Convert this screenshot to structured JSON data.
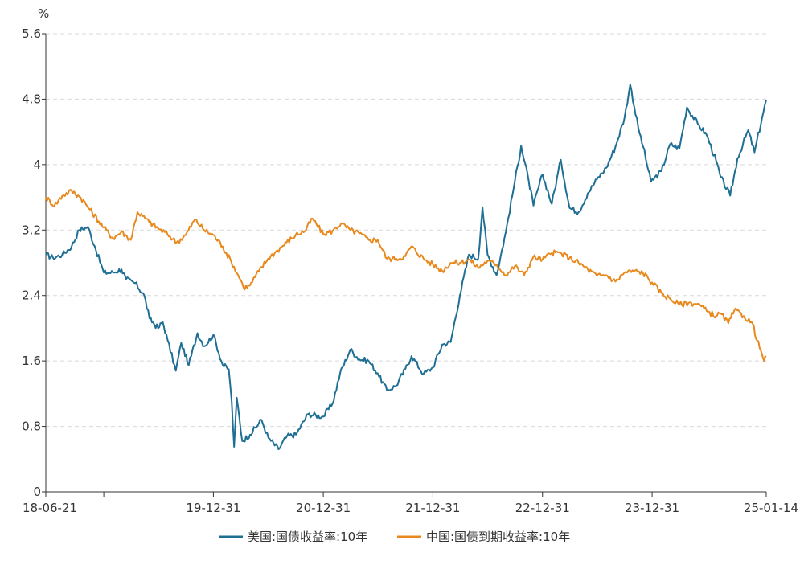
{
  "chart_data": {
    "type": "line",
    "title": "",
    "xlabel": "",
    "ylabel": "%",
    "ylim": [
      0,
      5.6
    ],
    "y_ticks": [
      "0",
      "0.8",
      "1.6",
      "2.4",
      "3.2",
      "4",
      "4.8",
      "5.6"
    ],
    "x_ticks": [
      "18-06-21",
      "19-12-31",
      "20-12-31",
      "21-12-31",
      "22-12-31",
      "23-12-31",
      "25-01-14"
    ],
    "grid": "horizontal-dashed",
    "legend_position": "bottom-center",
    "series": [
      {
        "name": "美国:国债收益率:10年",
        "color": "#1f6f95",
        "points": [
          [
            "2018-06-21",
            2.9
          ],
          [
            "2018-07-15",
            2.86
          ],
          [
            "2018-08-15",
            2.9
          ],
          [
            "2018-09-15",
            3.0
          ],
          [
            "2018-10-10",
            3.2
          ],
          [
            "2018-11-08",
            3.24
          ],
          [
            "2018-12-01",
            3.0
          ],
          [
            "2018-12-31",
            2.68
          ],
          [
            "2019-01-31",
            2.68
          ],
          [
            "2019-02-28",
            2.72
          ],
          [
            "2019-03-15",
            2.6
          ],
          [
            "2019-04-15",
            2.55
          ],
          [
            "2019-05-15",
            2.4
          ],
          [
            "2019-06-01",
            2.12
          ],
          [
            "2019-06-30",
            2.0
          ],
          [
            "2019-07-15",
            2.08
          ],
          [
            "2019-08-01",
            1.85
          ],
          [
            "2019-08-28",
            1.48
          ],
          [
            "2019-09-15",
            1.82
          ],
          [
            "2019-10-10",
            1.55
          ],
          [
            "2019-11-08",
            1.94
          ],
          [
            "2019-12-01",
            1.78
          ],
          [
            "2019-12-31",
            1.92
          ],
          [
            "2020-01-31",
            1.55
          ],
          [
            "2020-02-20",
            1.5
          ],
          [
            "2020-03-01",
            1.1
          ],
          [
            "2020-03-09",
            0.55
          ],
          [
            "2020-03-18",
            1.15
          ],
          [
            "2020-04-05",
            0.62
          ],
          [
            "2020-05-01",
            0.7
          ],
          [
            "2020-06-08",
            0.88
          ],
          [
            "2020-07-01",
            0.66
          ],
          [
            "2020-08-04",
            0.52
          ],
          [
            "2020-09-01",
            0.68
          ],
          [
            "2020-10-01",
            0.7
          ],
          [
            "2020-11-10",
            0.95
          ],
          [
            "2020-12-31",
            0.92
          ],
          [
            "2021-01-31",
            1.08
          ],
          [
            "2021-02-25",
            1.45
          ],
          [
            "2021-03-31",
            1.74
          ],
          [
            "2021-04-30",
            1.62
          ],
          [
            "2021-05-31",
            1.6
          ],
          [
            "2021-06-30",
            1.45
          ],
          [
            "2021-07-31",
            1.24
          ],
          [
            "2021-08-31",
            1.3
          ],
          [
            "2021-09-30",
            1.5
          ],
          [
            "2021-10-21",
            1.66
          ],
          [
            "2021-11-30",
            1.44
          ],
          [
            "2021-12-31",
            1.52
          ],
          [
            "2022-01-31",
            1.8
          ],
          [
            "2022-02-28",
            1.83
          ],
          [
            "2022-03-31",
            2.4
          ],
          [
            "2022-04-30",
            2.9
          ],
          [
            "2022-05-31",
            2.85
          ],
          [
            "2022-06-14",
            3.48
          ],
          [
            "2022-07-01",
            2.9
          ],
          [
            "2022-07-31",
            2.65
          ],
          [
            "2022-08-31",
            3.18
          ],
          [
            "2022-09-30",
            3.8
          ],
          [
            "2022-10-21",
            4.23
          ],
          [
            "2022-11-15",
            3.8
          ],
          [
            "2022-12-01",
            3.5
          ],
          [
            "2022-12-31",
            3.88
          ],
          [
            "2023-01-31",
            3.52
          ],
          [
            "2023-03-02",
            4.06
          ],
          [
            "2023-03-31",
            3.47
          ],
          [
            "2023-04-30",
            3.42
          ],
          [
            "2023-05-31",
            3.65
          ],
          [
            "2023-06-30",
            3.82
          ],
          [
            "2023-07-31",
            3.96
          ],
          [
            "2023-08-31",
            4.22
          ],
          [
            "2023-09-30",
            4.57
          ],
          [
            "2023-10-19",
            4.98
          ],
          [
            "2023-11-15",
            4.45
          ],
          [
            "2023-12-01",
            4.22
          ],
          [
            "2023-12-27",
            3.79
          ],
          [
            "2024-01-31",
            3.92
          ],
          [
            "2024-02-29",
            4.25
          ],
          [
            "2024-03-31",
            4.2
          ],
          [
            "2024-04-25",
            4.7
          ],
          [
            "2024-05-31",
            4.5
          ],
          [
            "2024-06-30",
            4.36
          ],
          [
            "2024-07-31",
            4.05
          ],
          [
            "2024-08-15",
            3.85
          ],
          [
            "2024-09-16",
            3.62
          ],
          [
            "2024-10-10",
            4.07
          ],
          [
            "2024-11-15",
            4.42
          ],
          [
            "2024-12-06",
            4.15
          ],
          [
            "2024-12-31",
            4.57
          ],
          [
            "2025-01-14",
            4.79
          ]
        ]
      },
      {
        "name": "中国:国债到期收益率:10年",
        "color": "#e8891e",
        "points": [
          [
            "2018-06-21",
            3.6
          ],
          [
            "2018-07-20",
            3.5
          ],
          [
            "2018-08-15",
            3.62
          ],
          [
            "2018-09-15",
            3.68
          ],
          [
            "2018-10-15",
            3.6
          ],
          [
            "2018-11-15",
            3.45
          ],
          [
            "2018-12-31",
            3.23
          ],
          [
            "2019-01-31",
            3.1
          ],
          [
            "2019-02-28",
            3.18
          ],
          [
            "2019-03-31",
            3.08
          ],
          [
            "2019-04-22",
            3.42
          ],
          [
            "2019-05-31",
            3.3
          ],
          [
            "2019-06-30",
            3.22
          ],
          [
            "2019-07-31",
            3.15
          ],
          [
            "2019-08-31",
            3.05
          ],
          [
            "2019-09-30",
            3.14
          ],
          [
            "2019-10-31",
            3.33
          ],
          [
            "2019-11-30",
            3.2
          ],
          [
            "2019-12-31",
            3.14
          ],
          [
            "2020-01-31",
            3.0
          ],
          [
            "2020-02-29",
            2.81
          ],
          [
            "2020-03-31",
            2.59
          ],
          [
            "2020-04-09",
            2.5
          ],
          [
            "2020-04-30",
            2.52
          ],
          [
            "2020-05-31",
            2.7
          ],
          [
            "2020-06-30",
            2.85
          ],
          [
            "2020-07-31",
            2.95
          ],
          [
            "2020-08-31",
            3.05
          ],
          [
            "2020-09-30",
            3.14
          ],
          [
            "2020-10-31",
            3.19
          ],
          [
            "2020-11-25",
            3.34
          ],
          [
            "2020-12-31",
            3.15
          ],
          [
            "2021-01-31",
            3.19
          ],
          [
            "2021-02-28",
            3.28
          ],
          [
            "2021-03-31",
            3.2
          ],
          [
            "2021-04-30",
            3.16
          ],
          [
            "2021-05-31",
            3.08
          ],
          [
            "2021-06-30",
            3.08
          ],
          [
            "2021-07-31",
            2.85
          ],
          [
            "2021-08-31",
            2.85
          ],
          [
            "2021-09-30",
            2.88
          ],
          [
            "2021-10-20",
            3.0
          ],
          [
            "2021-11-30",
            2.85
          ],
          [
            "2021-12-31",
            2.78
          ],
          [
            "2022-01-31",
            2.7
          ],
          [
            "2022-02-28",
            2.8
          ],
          [
            "2022-03-31",
            2.8
          ],
          [
            "2022-04-30",
            2.84
          ],
          [
            "2022-05-31",
            2.74
          ],
          [
            "2022-06-30",
            2.82
          ],
          [
            "2022-07-31",
            2.78
          ],
          [
            "2022-08-31",
            2.65
          ],
          [
            "2022-09-30",
            2.76
          ],
          [
            "2022-10-31",
            2.65
          ],
          [
            "2022-11-30",
            2.87
          ],
          [
            "2022-12-31",
            2.84
          ],
          [
            "2023-01-31",
            2.92
          ],
          [
            "2023-02-28",
            2.92
          ],
          [
            "2023-03-31",
            2.86
          ],
          [
            "2023-04-30",
            2.8
          ],
          [
            "2023-05-31",
            2.72
          ],
          [
            "2023-06-30",
            2.64
          ],
          [
            "2023-07-31",
            2.65
          ],
          [
            "2023-08-31",
            2.57
          ],
          [
            "2023-09-30",
            2.68
          ],
          [
            "2023-10-31",
            2.7
          ],
          [
            "2023-11-30",
            2.68
          ],
          [
            "2023-12-31",
            2.56
          ],
          [
            "2024-01-31",
            2.43
          ],
          [
            "2024-02-29",
            2.36
          ],
          [
            "2024-03-31",
            2.29
          ],
          [
            "2024-04-30",
            2.31
          ],
          [
            "2024-05-31",
            2.3
          ],
          [
            "2024-06-30",
            2.21
          ],
          [
            "2024-07-31",
            2.15
          ],
          [
            "2024-08-15",
            2.18
          ],
          [
            "2024-09-10",
            2.06
          ],
          [
            "2024-09-30",
            2.22
          ],
          [
            "2024-10-31",
            2.15
          ],
          [
            "2024-11-30",
            2.05
          ],
          [
            "2024-12-15",
            1.85
          ],
          [
            "2024-12-31",
            1.68
          ],
          [
            "2025-01-07",
            1.6
          ],
          [
            "2025-01-14",
            1.65
          ]
        ]
      }
    ]
  }
}
